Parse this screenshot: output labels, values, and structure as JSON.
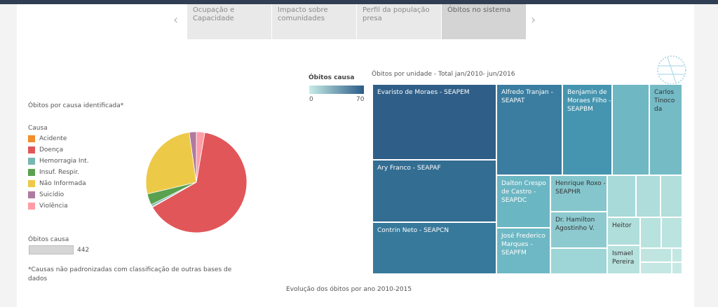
{
  "tabs": [
    {
      "label": "Ocupação e Capacidade",
      "active": false
    },
    {
      "label": "Impacto sobre comunidades",
      "active": false
    },
    {
      "label": "Perfil da população presa",
      "active": false
    },
    {
      "label": "Óbitos no sistema",
      "active": true
    }
  ],
  "nav": {
    "prev_icon": "chevron-left-icon",
    "next_icon": "chevron-right-icon",
    "prev": "‹",
    "next": "›"
  },
  "pie_section": {
    "title": "Óbitos por causa identificada*",
    "legend_title": "Causa",
    "count_label": "Óbitos causa",
    "count_value": "442",
    "footnote_line1": "*Causas não padronizadas com classificação de outras bases de",
    "footnote_line2": "dados"
  },
  "treemap_section": {
    "title": "Óbitos por unidade - Total jan/2010- jun/2016",
    "color_legend_title": "Óbitos causa",
    "color_min": "0",
    "color_max": "70"
  },
  "bottom_title": "Evolução dos óbitos por ano 2010-2015",
  "chart_data": [
    {
      "type": "pie",
      "title": "Óbitos por causa identificada*",
      "legend_title": "Causa",
      "categories": [
        "Acidente",
        "Doença",
        "Hemorragia Int.",
        "Insuf. Respir.",
        "Não Informada",
        "Suicídio",
        "Violência"
      ],
      "values": [
        1,
        283,
        3,
        16,
        117,
        10,
        12
      ],
      "colors": [
        "#f28e2b",
        "#e15759",
        "#76b7b2",
        "#59a14f",
        "#edc948",
        "#b07aa1",
        "#ff9da7"
      ],
      "total": 442
    },
    {
      "type": "treemap",
      "title": "Óbitos por unidade - Total jan/2010- jun/2016",
      "color_scale": {
        "min": 0,
        "max": 70,
        "from": "#c7ebe6",
        "to": "#2b5c87"
      },
      "units": [
        {
          "name": "Evaristo de Moraes - SEAPEM",
          "value": 70
        },
        {
          "name": "Ary Franco - SEAPAF",
          "value": 62
        },
        {
          "name": "Contrin Neto - SEAPCN",
          "value": 56
        },
        {
          "name": "Alfredo Tranjan - SEAPAT",
          "value": 54
        },
        {
          "name": "Benjamin de Moraes Filho - SEAPBM",
          "value": 44
        },
        {
          "name": "Carlos Tinoco da",
          "value": 28
        },
        {
          "name": "Dalton Crespo de Castro - SEAPDC",
          "value": 32
        },
        {
          "name": "Henrique Roxo - SEAPHR",
          "value": 24
        },
        {
          "name": "José Frederico Marques - SEAPFM",
          "value": 30
        },
        {
          "name": "Dr. Hamilton Agostinho V.",
          "value": 22
        },
        {
          "name": "Heitor",
          "value": 14
        },
        {
          "name": "Ismael Pereira",
          "value": 12
        }
      ]
    }
  ]
}
